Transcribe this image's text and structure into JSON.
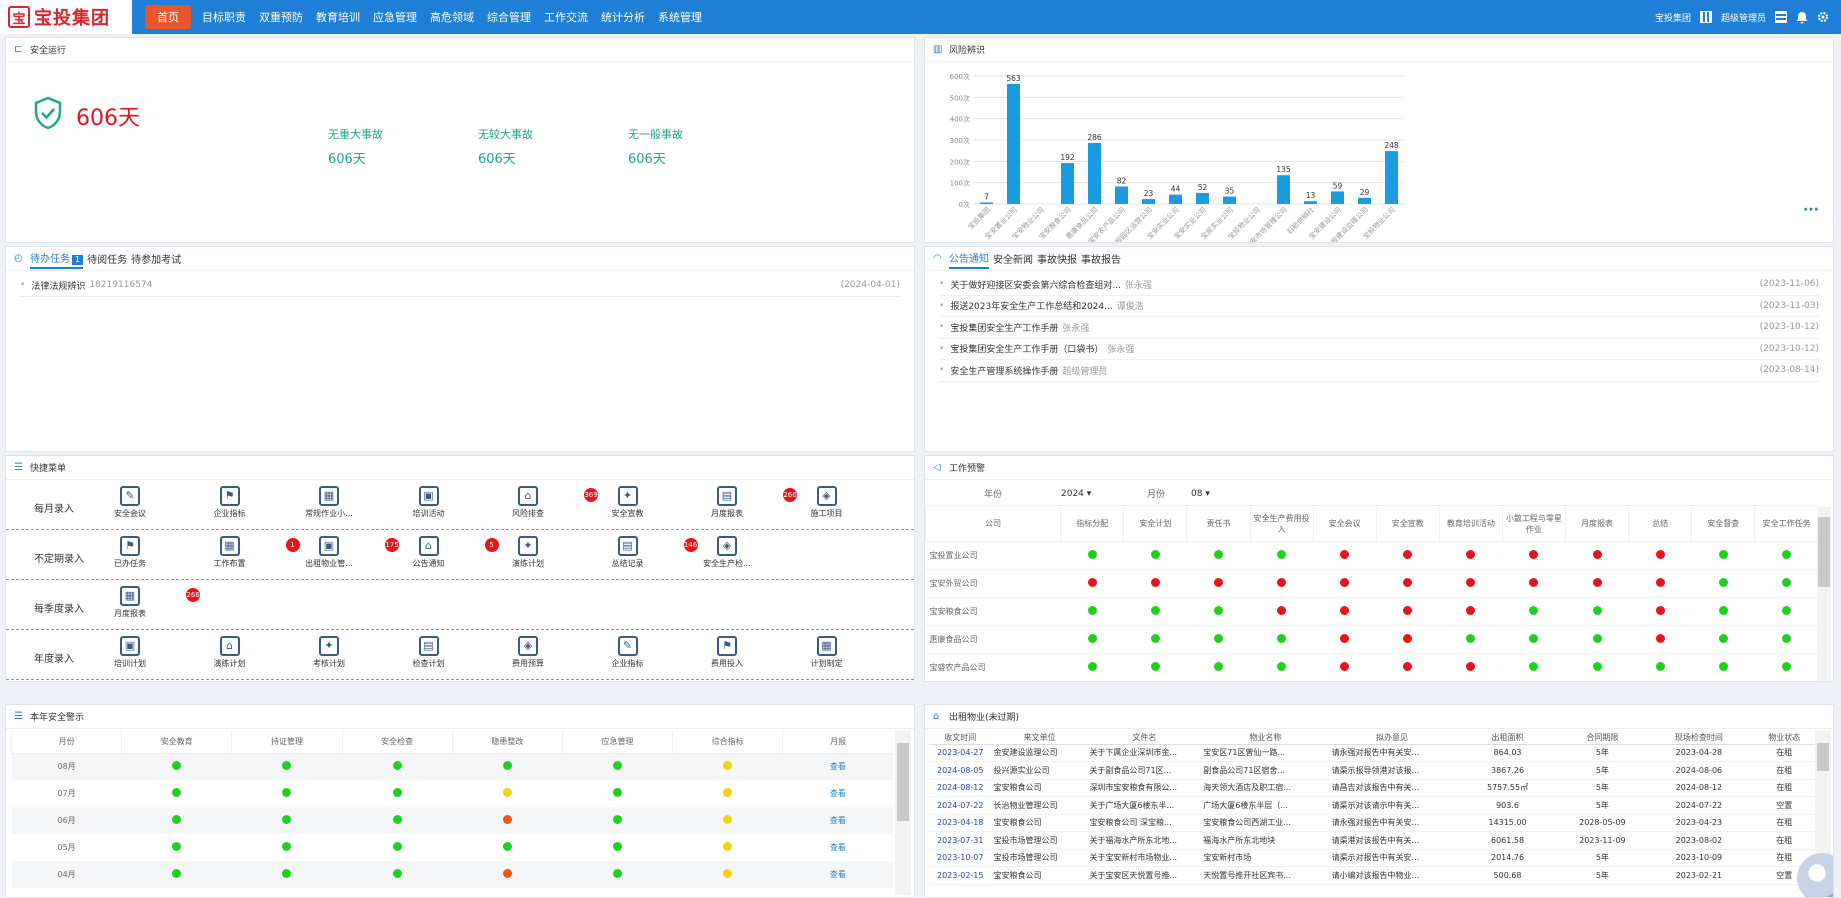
{
  "app": {
    "logo_text": "宝投集团"
  },
  "menu": [
    "首页",
    "目标职责",
    "双重预防",
    "教育培训",
    "应急管理",
    "高危领域",
    "综合管理",
    "工作交流",
    "统计分析",
    "系统管理"
  ],
  "user": {
    "company": "宝投集团",
    "role": "超级管理员"
  },
  "safety": {
    "title": "安全运行",
    "days": "606天",
    "items": [
      {
        "label": "无重大事故",
        "value": "606天"
      },
      {
        "label": "无较大事故",
        "value": "606天"
      },
      {
        "label": "无一般事故",
        "value": "606天"
      }
    ]
  },
  "risk": {
    "title": "风险辨识",
    "more": "···"
  },
  "chart_data": {
    "type": "bar",
    "ylim": [
      0,
      600
    ],
    "yticks": [
      "0次",
      "100次",
      "200次",
      "300次",
      "400次",
      "500次",
      "600次"
    ],
    "categories": [
      "宝投集团",
      "宝安置业公司",
      "宝安物业公司",
      "宝安粮食公司",
      "惠康食品公司",
      "宝安农产品公司",
      "宝投园区运营公司",
      "宝安实业公司",
      "宝安实业公司",
      "宝民实业公司",
      "宝投物业公司",
      "宝安市场管理公司",
      "石岩供销社",
      "宝安建设公司",
      "宝投建设监理公司",
      "宝投物业公司"
    ],
    "values": [
      7,
      563,
      0,
      192,
      286,
      82,
      23,
      44,
      52,
      35,
      0,
      135,
      13,
      59,
      29,
      248
    ],
    "labels": [
      "7",
      "563",
      "",
      "192",
      "286",
      "82",
      "23",
      "44",
      "52",
      "35",
      "",
      "135",
      "13",
      "59",
      "29",
      "248"
    ],
    "color": "#1b9be0"
  },
  "todo": {
    "tabs": [
      "待办任务",
      "待阅任务",
      "待参加考试"
    ],
    "count": "1",
    "items": [
      {
        "text": "法律法规辨识",
        "extra": "18219116574",
        "date": "(2024-04-01)"
      }
    ]
  },
  "notice": {
    "tabs": [
      "公告通知",
      "安全新闻",
      "事故快报",
      "事故报告"
    ],
    "items": [
      {
        "text": "关于做好迎接区安委会第六综合检查组对...",
        "author": "张永强",
        "date": "(2023-11-06)"
      },
      {
        "text": "报送2023年安全生产工作总结和2024...",
        "author": "谭俊浩",
        "date": "(2023-11-03)"
      },
      {
        "text": "宝投集团安全生产工作手册",
        "author": "张永强",
        "date": "(2023-10-12)"
      },
      {
        "text": "宝投集团安全生产工作手册（口袋书）",
        "author": "张永强",
        "date": "(2023-10-12)"
      },
      {
        "text": "安全生产管理系统操作手册",
        "author": "超级管理员",
        "date": "(2023-08-14)"
      }
    ]
  },
  "quick": {
    "title": "快捷菜单",
    "rows": [
      {
        "label": "每月录入",
        "items": [
          "安全会议",
          "企业指标",
          "常规作业小...",
          "培训活动",
          "风险排查",
          "安全宣教",
          "月度报表",
          "施工项目"
        ],
        "badges": [
          "",
          "",
          "",
          "",
          "369",
          "",
          "266",
          ""
        ]
      },
      {
        "label": "不定期录入",
        "items": [
          "已办任务",
          "工作布置",
          "出租物业管...",
          "公告通知",
          "演练计划",
          "总结记录",
          "安全生产检..."
        ],
        "badges": [
          "",
          "1",
          "175",
          "5",
          "",
          "146",
          ""
        ]
      },
      {
        "label": "每季度录入",
        "items": [
          "月度报表"
        ],
        "badges": [
          "266"
        ]
      },
      {
        "label": "年度录入",
        "items": [
          "培训计划",
          "演练计划",
          "考核计划",
          "检查计划",
          "费用预算",
          "企业指标",
          "费用投入",
          "计划制定"
        ],
        "badges": [
          "",
          "",
          "",
          "",
          "",
          "",
          "",
          ""
        ]
      }
    ]
  },
  "warn": {
    "title": "工作预警",
    "year_label": "年份",
    "year": "2024",
    "month_label": "月份",
    "month": "08",
    "headers": [
      "公司",
      "指标分配",
      "安全计划",
      "责任书",
      "安全生产费用投入",
      "安全会议",
      "安全宣教",
      "教育培训活动",
      "小散工程与零星作业",
      "月度报表",
      "总结",
      "安全督查",
      "安全工作任务"
    ],
    "rows": [
      {
        "name": "宝投置业公司",
        "s": [
          "g",
          "g",
          "g",
          "g",
          "r",
          "r",
          "r",
          "r",
          "r",
          "r",
          "g",
          "g"
        ]
      },
      {
        "name": "宝安外贸公司",
        "s": [
          "r",
          "r",
          "r",
          "r",
          "r",
          "r",
          "r",
          "r",
          "r",
          "r",
          "g",
          "g"
        ]
      },
      {
        "name": "宝安粮食公司",
        "s": [
          "g",
          "g",
          "g",
          "r",
          "r",
          "r",
          "r",
          "g",
          "g",
          "r",
          "g",
          "g"
        ]
      },
      {
        "name": "惠康食品公司",
        "s": [
          "g",
          "g",
          "g",
          "g",
          "r",
          "r",
          "g",
          "g",
          "g",
          "r",
          "g",
          "g"
        ]
      },
      {
        "name": "宝盛农产品公司",
        "s": [
          "g",
          "g",
          "g",
          "g",
          "r",
          "r",
          "r",
          "g",
          "g",
          "g",
          "g",
          "g"
        ]
      }
    ]
  },
  "alarm": {
    "title": "本年安全警示",
    "headers": [
      "月份",
      "安全教育",
      "持证管理",
      "安全检查",
      "隐患整改",
      "应急管理",
      "综合指标",
      "月报"
    ],
    "view": "查看",
    "rows": [
      {
        "m": "08月",
        "s": [
          "g",
          "g",
          "g",
          "g",
          "g",
          "y"
        ]
      },
      {
        "m": "07月",
        "s": [
          "g",
          "g",
          "g",
          "y",
          "g",
          "y"
        ]
      },
      {
        "m": "06月",
        "s": [
          "g",
          "g",
          "g",
          "o",
          "g",
          "y"
        ]
      },
      {
        "m": "05月",
        "s": [
          "g",
          "g",
          "g",
          "g",
          "g",
          "y"
        ]
      },
      {
        "m": "04月",
        "s": [
          "g",
          "g",
          "g",
          "o",
          "g",
          "y"
        ]
      }
    ]
  },
  "rent": {
    "title": "出租物业(未过期)",
    "headers": [
      "收文时间",
      "来文单位",
      "文件名",
      "物业名称",
      "拟办意见",
      "出租面积",
      "合同期限",
      "现场检查时间",
      "物业状态"
    ],
    "rows": [
      [
        "2023-04-27",
        "金安建设监理公司",
        "关于下属企业深圳市金...",
        "宝安区71区曾仙一路...",
        "请永强对报告中有关安...",
        "864.03",
        "5年",
        "2023-04-28",
        "在租"
      ],
      [
        "2024-08-05",
        "投兴源实业公司",
        "关于副食品公司71区...",
        "副食品公司71区宿舍...",
        "请渠示报导领港对该报...",
        "3867.26",
        "5年",
        "2024-08-06",
        "在租"
      ],
      [
        "2024-08-12",
        "宝安粮食公司",
        "深圳市宝安粮食有限公...",
        "海天领大酒店及职工宿...",
        "请昌吉对该报告中有关...",
        "5757.55㎡",
        "5年",
        "2024-08-12",
        "在租"
      ],
      [
        "2024-07-22",
        "长治物业管理公司",
        "关于广场大厦6楼东半...",
        "广场大厦6楼东半层（...",
        "请渠示对该请示中有关...",
        "903.6",
        "5年",
        "2024-07-22",
        "空置"
      ],
      [
        "2023-04-18",
        "宝安粮食公司",
        "宝安粮食公司 深宝粮...",
        "宝安粮食公司西湖工业...",
        "请永强对报告中有关安...",
        "14315.00",
        "2028-05-09",
        "2023-04-23",
        "在租"
      ],
      [
        "2023-07-31",
        "宝投市场管理公司",
        "关于福海水产所东北地...",
        "福海水产所东北地块",
        "请渠港对该报告中有关...",
        "6061.58",
        "2023-11-09",
        "2023-08-02",
        "在租"
      ],
      [
        "2023-10-07",
        "宝投市场管理公司",
        "关于宝安新村市场物业...",
        "宝安新村市场",
        "请渠示对报告中有关安...",
        "2014.76",
        "5年",
        "2023-10-09",
        "在租"
      ],
      [
        "2023-02-15",
        "宝安粮食公司",
        "关于宝安区天悦置号推...",
        "天悦置号推开社区宾书...",
        "请小编对该报告中物业...",
        "500.68",
        "5年",
        "2023-02-21",
        "空置"
      ]
    ]
  }
}
